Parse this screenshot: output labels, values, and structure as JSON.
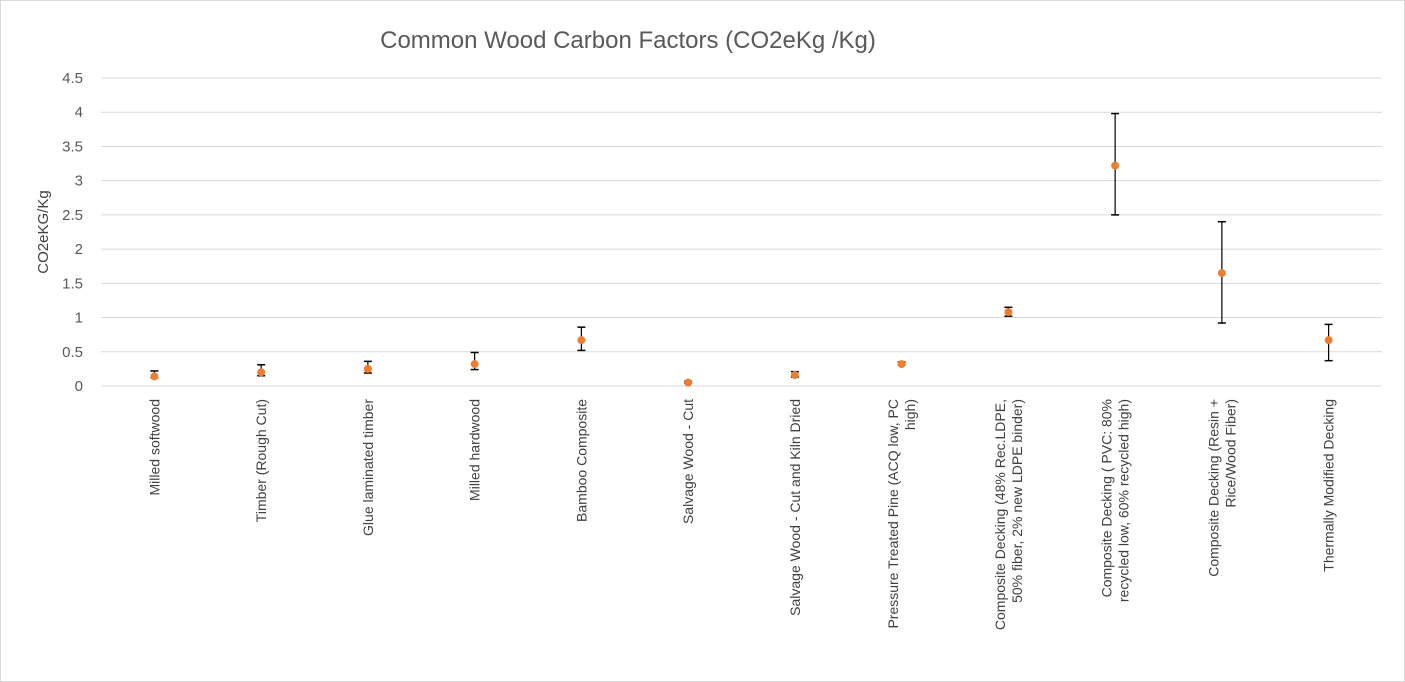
{
  "chart_data": {
    "type": "scatter",
    "title": "Common Wood Carbon Factors (CO2eKg /Kg)",
    "xlabel": "",
    "ylabel": "CO2eKG/Kg",
    "ylim": [
      0,
      4.5
    ],
    "yticks": [
      "0",
      "0.5",
      "1",
      "1.5",
      "2",
      "2.5",
      "3",
      "3.5",
      "4",
      "4.5"
    ],
    "grid": true,
    "legend": "none",
    "marker_color": "#ED7D31",
    "error_bar_color": "#000000",
    "gridline_color": "#D9D9D9",
    "categories": [
      [
        "Milled softwood"
      ],
      [
        "Timber (Rough Cut)"
      ],
      [
        "Glue laminated timber"
      ],
      [
        "Milled hardwood"
      ],
      [
        "Bamboo Composite"
      ],
      [
        "Salvage Wood - Cut"
      ],
      [
        "Salvage Wood - Cut and Kiln Dried"
      ],
      [
        "Pressure Treated Pine (ACQ low, PC",
        "high)"
      ],
      [
        "Composite Decking (48% Rec.LDPE,",
        "50% fiber, 2% new LDPE binder)"
      ],
      [
        "Composite Decking ( PVC: 80%",
        "recycled low, 60% recycled high)"
      ],
      [
        "Composite Decking (Resin +",
        "Rice/Wood Fiber)"
      ],
      [
        "Thermally Modified Decking"
      ]
    ],
    "series": [
      {
        "values": [
          0.14,
          0.2,
          0.25,
          0.32,
          0.67,
          0.05,
          0.16,
          0.32,
          1.08,
          3.22,
          1.65,
          0.67
        ],
        "low": [
          0.12,
          0.15,
          0.19,
          0.24,
          0.52,
          0.04,
          0.13,
          0.31,
          1.02,
          2.5,
          0.92,
          0.37
        ],
        "high": [
          0.22,
          0.31,
          0.36,
          0.49,
          0.86,
          0.07,
          0.21,
          0.35,
          1.15,
          3.98,
          2.4,
          0.9
        ]
      }
    ]
  }
}
